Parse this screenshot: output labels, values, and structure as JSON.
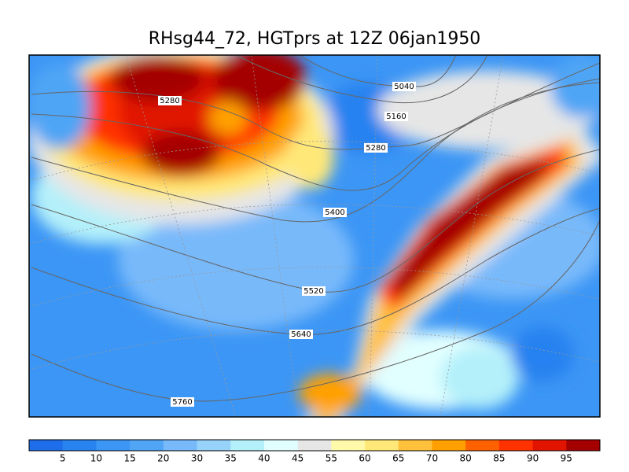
{
  "title": "RHsg44_72, HGTprs at 12Z  06jan1950",
  "contour_labels": [
    5040,
    5160,
    5280,
    5280,
    5400,
    5520,
    5640,
    5760
  ],
  "colorbar": {
    "colors": [
      "#1e6eeb",
      "#2882f0",
      "#3c96f5",
      "#50a5f5",
      "#78b9fa",
      "#96d2fa",
      "#b4f0fa",
      "#e1ffff",
      "#e6e6e6",
      "#fffaaa",
      "#ffe878",
      "#ffc03c",
      "#ffa000",
      "#ff6000",
      "#ff3200",
      "#e11400",
      "#a50000"
    ],
    "labels": [
      5,
      10,
      15,
      20,
      30,
      35,
      40,
      45,
      55,
      60,
      65,
      70,
      80,
      85,
      90,
      95
    ]
  }
}
